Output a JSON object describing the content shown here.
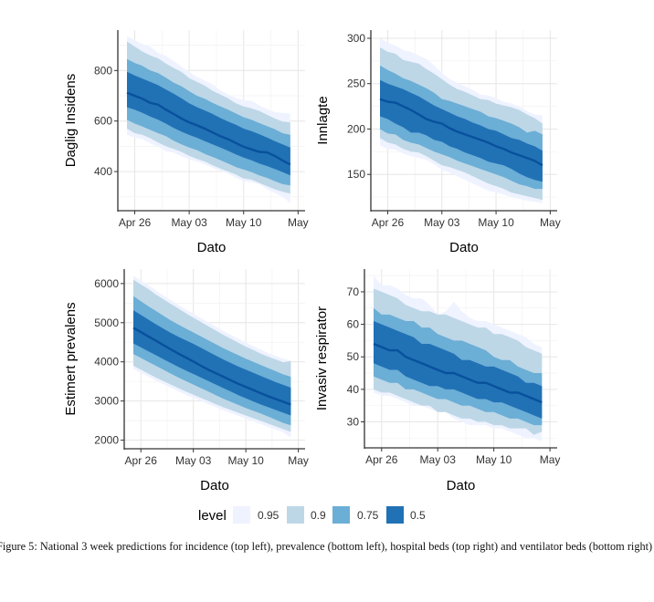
{
  "caption": "Figure 5: National 3 week predictions for incidence (top left), prevalence (bottom left), hospital beds (top right) and ventilator beds (bottom right)",
  "legend": {
    "title": "level",
    "entries": [
      {
        "label": "0.95",
        "color": "#eff3ff"
      },
      {
        "label": "0.9",
        "color": "#bdd7e7"
      },
      {
        "label": "0.75",
        "color": "#6baed6"
      },
      {
        "label": "0.5",
        "color": "#2171b5"
      }
    ],
    "median_color": "#08519c"
  },
  "chart_data": [
    {
      "type": "area",
      "id": "incidence",
      "position": "top-left",
      "title": "",
      "xlabel": "Dato",
      "ylabel": "Daglig Insidens",
      "x_ticks": [
        "Apr 26",
        "May 03",
        "May 10",
        "May"
      ],
      "x_tick_days": [
        1,
        8,
        15,
        22
      ],
      "xlim_days": [
        0,
        22
      ],
      "y_ticks": [
        400,
        600,
        800
      ],
      "ylim": [
        245,
        960
      ],
      "grid": true,
      "x_days": [
        0,
        1,
        2,
        3,
        4,
        5,
        6,
        7,
        8,
        9,
        10,
        11,
        12,
        13,
        14,
        15,
        16,
        17,
        18,
        19,
        20,
        21
      ],
      "median": [
        712,
        700,
        688,
        672,
        665,
        645,
        628,
        610,
        595,
        583,
        570,
        555,
        540,
        528,
        513,
        498,
        488,
        478,
        476,
        462,
        444,
        428
      ],
      "bands": {
        "0.5": {
          "lo": [
            655,
            645,
            632,
            618,
            605,
            590,
            573,
            558,
            545,
            534,
            520,
            508,
            495,
            482,
            468,
            455,
            445,
            432,
            422,
            410,
            398,
            385
          ],
          "hi": [
            795,
            780,
            768,
            755,
            742,
            725,
            708,
            690,
            670,
            655,
            642,
            628,
            612,
            598,
            585,
            570,
            560,
            548,
            535,
            520,
            508,
            495
          ]
        },
        "0.75": {
          "lo": [
            605,
            590,
            578,
            565,
            552,
            540,
            522,
            508,
            495,
            485,
            470,
            458,
            445,
            432,
            418,
            408,
            398,
            385,
            375,
            362,
            350,
            345
          ],
          "hi": [
            845,
            830,
            818,
            800,
            790,
            772,
            752,
            738,
            718,
            700,
            688,
            672,
            658,
            645,
            630,
            615,
            605,
            592,
            580,
            568,
            552,
            545
          ]
        },
        "0.9": {
          "lo": [
            570,
            552,
            545,
            532,
            515,
            500,
            490,
            478,
            462,
            450,
            440,
            425,
            412,
            400,
            388,
            372,
            368,
            355,
            342,
            330,
            320,
            312
          ],
          "hi": [
            915,
            895,
            875,
            860,
            848,
            828,
            810,
            795,
            770,
            755,
            740,
            720,
            705,
            690,
            670,
            658,
            650,
            640,
            625,
            610,
            598,
            595
          ]
        },
        "0.95": {
          "lo": [
            545,
            535,
            528,
            512,
            498,
            480,
            475,
            460,
            448,
            440,
            428,
            415,
            402,
            392,
            375,
            362,
            358,
            350,
            330,
            315,
            300,
            275
          ],
          "hi": [
            935,
            920,
            905,
            895,
            870,
            858,
            838,
            815,
            795,
            775,
            760,
            745,
            722,
            705,
            692,
            682,
            680,
            662,
            648,
            635,
            632,
            630
          ]
        }
      }
    },
    {
      "type": "area",
      "id": "hospital",
      "position": "top-right",
      "title": "",
      "xlabel": "Dato",
      "ylabel": "Innlagte",
      "x_ticks": [
        "Apr 26",
        "May 03",
        "May 10",
        "May"
      ],
      "x_tick_days": [
        1,
        8,
        15,
        22
      ],
      "xlim_days": [
        0,
        22
      ],
      "y_ticks": [
        150,
        200,
        250,
        300
      ],
      "ylim": [
        110,
        309
      ],
      "grid": true,
      "x_days": [
        0,
        1,
        2,
        3,
        4,
        5,
        6,
        7,
        8,
        9,
        10,
        11,
        12,
        13,
        14,
        15,
        16,
        17,
        18,
        19,
        20,
        21
      ],
      "median": [
        233,
        230,
        229,
        225,
        221,
        216,
        211,
        208,
        206,
        201,
        197,
        194,
        191,
        188,
        185,
        181,
        178,
        174,
        171,
        168,
        165,
        160
      ],
      "bands": {
        "0.5": {
          "lo": [
            214,
            211,
            206,
            202,
            196,
            196,
            193,
            188,
            186,
            181,
            178,
            174,
            171,
            168,
            164,
            162,
            160,
            156,
            151,
            147,
            144,
            142
          ],
          "hi": [
            254,
            250,
            247,
            244,
            240,
            236,
            231,
            226,
            222,
            218,
            214,
            211,
            207,
            204,
            200,
            198,
            194,
            190,
            188,
            184,
            181,
            176
          ]
        },
        "0.75": {
          "lo": [
            200,
            195,
            194,
            188,
            185,
            183,
            179,
            175,
            172,
            169,
            165,
            162,
            159,
            156,
            153,
            150,
            147,
            143,
            139,
            137,
            134,
            134
          ],
          "hi": [
            270,
            265,
            261,
            256,
            253,
            249,
            245,
            240,
            233,
            231,
            228,
            225,
            222,
            219,
            214,
            212,
            209,
            206,
            202,
            196,
            198,
            194
          ]
        },
        "0.9": {
          "lo": [
            190,
            185,
            183,
            178,
            175,
            174,
            170,
            165,
            160,
            158,
            155,
            152,
            148,
            144,
            140,
            137,
            134,
            130,
            128,
            126,
            124,
            122
          ],
          "hi": [
            290,
            285,
            283,
            276,
            274,
            272,
            266,
            261,
            255,
            249,
            244,
            241,
            237,
            233,
            232,
            228,
            226,
            224,
            221,
            216,
            212,
            206
          ]
        },
        "0.95": {
          "lo": [
            182,
            178,
            177,
            173,
            170,
            168,
            166,
            161,
            155,
            152,
            148,
            144,
            140,
            136,
            132,
            130,
            128,
            125,
            123,
            121,
            120,
            118
          ],
          "hi": [
            300,
            295,
            292,
            287,
            285,
            281,
            277,
            270,
            262,
            255,
            251,
            247,
            243,
            238,
            237,
            234,
            230,
            228,
            225,
            220,
            216,
            215
          ]
        }
      }
    },
    {
      "type": "area",
      "id": "prevalence",
      "position": "bottom-left",
      "title": "",
      "xlabel": "Dato",
      "ylabel": "Estimert prevalens",
      "x_ticks": [
        "Apr 26",
        "May 03",
        "May 10",
        "May"
      ],
      "x_tick_days": [
        1,
        8,
        15,
        22
      ],
      "xlim_days": [
        0,
        22
      ],
      "y_ticks": [
        2000,
        3000,
        4000,
        5000,
        6000
      ],
      "ylim": [
        1780,
        6370
      ],
      "grid": true,
      "x_days": [
        0,
        1,
        2,
        3,
        4,
        5,
        6,
        7,
        8,
        9,
        10,
        11,
        12,
        13,
        14,
        15,
        16,
        17,
        18,
        19,
        20,
        21
      ],
      "median": [
        4870,
        4760,
        4650,
        4540,
        4430,
        4320,
        4210,
        4110,
        4010,
        3900,
        3800,
        3710,
        3620,
        3530,
        3440,
        3360,
        3280,
        3200,
        3120,
        3050,
        2980,
        2910
      ],
      "bands": {
        "0.5": {
          "lo": [
            4470,
            4370,
            4270,
            4170,
            4070,
            3970,
            3870,
            3780,
            3690,
            3600,
            3510,
            3420,
            3330,
            3240,
            3150,
            3070,
            2990,
            2910,
            2840,
            2770,
            2700,
            2630
          ],
          "hi": [
            5320,
            5200,
            5080,
            4960,
            4850,
            4740,
            4640,
            4550,
            4460,
            4360,
            4260,
            4160,
            4060,
            3970,
            3880,
            3800,
            3720,
            3640,
            3560,
            3480,
            3410,
            3340
          ]
        },
        "0.75": {
          "lo": [
            4200,
            4100,
            4000,
            3900,
            3800,
            3700,
            3600,
            3510,
            3420,
            3330,
            3240,
            3150,
            3060,
            2980,
            2900,
            2820,
            2750,
            2680,
            2600,
            2520,
            2440,
            2380
          ],
          "hi": [
            5680,
            5550,
            5420,
            5300,
            5180,
            5060,
            4950,
            4850,
            4750,
            4650,
            4550,
            4450,
            4350,
            4260,
            4170,
            4080,
            4000,
            3920,
            3840,
            3760,
            3680,
            3620
          ]
        },
        "0.9": {
          "lo": [
            3900,
            3800,
            3700,
            3600,
            3510,
            3420,
            3330,
            3240,
            3160,
            3080,
            3000,
            2920,
            2840,
            2770,
            2700,
            2630,
            2560,
            2490,
            2420,
            2350,
            2280,
            2210
          ],
          "hi": [
            6100,
            5980,
            5860,
            5720,
            5600,
            5480,
            5360,
            5240,
            5130,
            5020,
            4910,
            4800,
            4690,
            4590,
            4490,
            4390,
            4300,
            4210,
            4130,
            4060,
            3990,
            4020
          ]
        },
        "0.95": {
          "lo": [
            3820,
            3720,
            3620,
            3520,
            3430,
            3340,
            3250,
            3160,
            3080,
            3000,
            2920,
            2840,
            2760,
            2690,
            2620,
            2550,
            2480,
            2410,
            2340,
            2270,
            2200,
            2060
          ],
          "hi": [
            6200,
            6080,
            5960,
            5830,
            5700,
            5580,
            5460,
            5340,
            5230,
            5120,
            5010,
            4900,
            4790,
            4690,
            4590,
            4490,
            4400,
            4310,
            4220,
            4150,
            4080,
            4040
          ]
        }
      }
    },
    {
      "type": "area",
      "id": "ventilator",
      "position": "bottom-right",
      "title": "",
      "xlabel": "Dato",
      "ylabel": "Invasiv respirator",
      "x_ticks": [
        "Apr 26",
        "May 03",
        "May 10",
        "May"
      ],
      "x_tick_days": [
        1,
        8,
        15,
        22
      ],
      "xlim_days": [
        0,
        22
      ],
      "y_ticks": [
        30,
        40,
        50,
        60,
        70
      ],
      "ylim": [
        22,
        77
      ],
      "grid": true,
      "x_days": [
        0,
        1,
        2,
        3,
        4,
        5,
        6,
        7,
        8,
        9,
        10,
        11,
        12,
        13,
        14,
        15,
        16,
        17,
        18,
        19,
        20,
        21
      ],
      "median": [
        54,
        53,
        52,
        52,
        50,
        49,
        48,
        47,
        46,
        45,
        45,
        44,
        43,
        42,
        42,
        41,
        40,
        39,
        39,
        38,
        37,
        36
      ],
      "bands": {
        "0.5": {
          "lo": [
            48,
            47,
            46,
            46,
            44,
            43,
            42,
            41,
            41,
            40,
            40,
            39,
            38,
            37,
            37,
            36,
            36,
            35,
            34,
            33,
            32,
            31
          ],
          "hi": [
            61,
            60,
            59,
            58,
            57,
            56,
            54,
            54,
            53,
            52,
            51,
            49,
            49,
            48,
            47,
            47,
            46,
            45,
            44,
            42,
            42,
            41
          ]
        },
        "0.75": {
          "lo": [
            44,
            43,
            42,
            42,
            40,
            40,
            39,
            38,
            37,
            37,
            36,
            35,
            35,
            34,
            33,
            33,
            32,
            31,
            31,
            30,
            29,
            29
          ],
          "hi": [
            65,
            63,
            63,
            62,
            61,
            61,
            59,
            59,
            57,
            56,
            55,
            55,
            54,
            53,
            52,
            50,
            49,
            49,
            47,
            46,
            45,
            45
          ]
        },
        "0.9": {
          "lo": [
            40,
            39,
            39,
            38,
            37,
            36,
            35,
            35,
            33,
            33,
            32,
            31,
            31,
            30,
            30,
            29,
            29,
            28,
            28,
            28,
            26,
            27
          ],
          "hi": [
            71,
            70,
            69,
            68,
            66,
            65,
            64,
            64,
            63,
            63,
            62,
            61,
            60,
            59,
            59,
            57,
            57,
            56,
            55,
            53,
            52,
            51
          ]
        },
        "0.95": {
          "lo": [
            39,
            38,
            38,
            37,
            36,
            35,
            35,
            34,
            33,
            33,
            31,
            30,
            29,
            29,
            29,
            28,
            28,
            27,
            26,
            25,
            25,
            24
          ],
          "hi": [
            75,
            72,
            72,
            71,
            69,
            68,
            68,
            66,
            63,
            64,
            67,
            64,
            62,
            61,
            61,
            60,
            59,
            58,
            57,
            56,
            54,
            53
          ]
        }
      }
    }
  ]
}
